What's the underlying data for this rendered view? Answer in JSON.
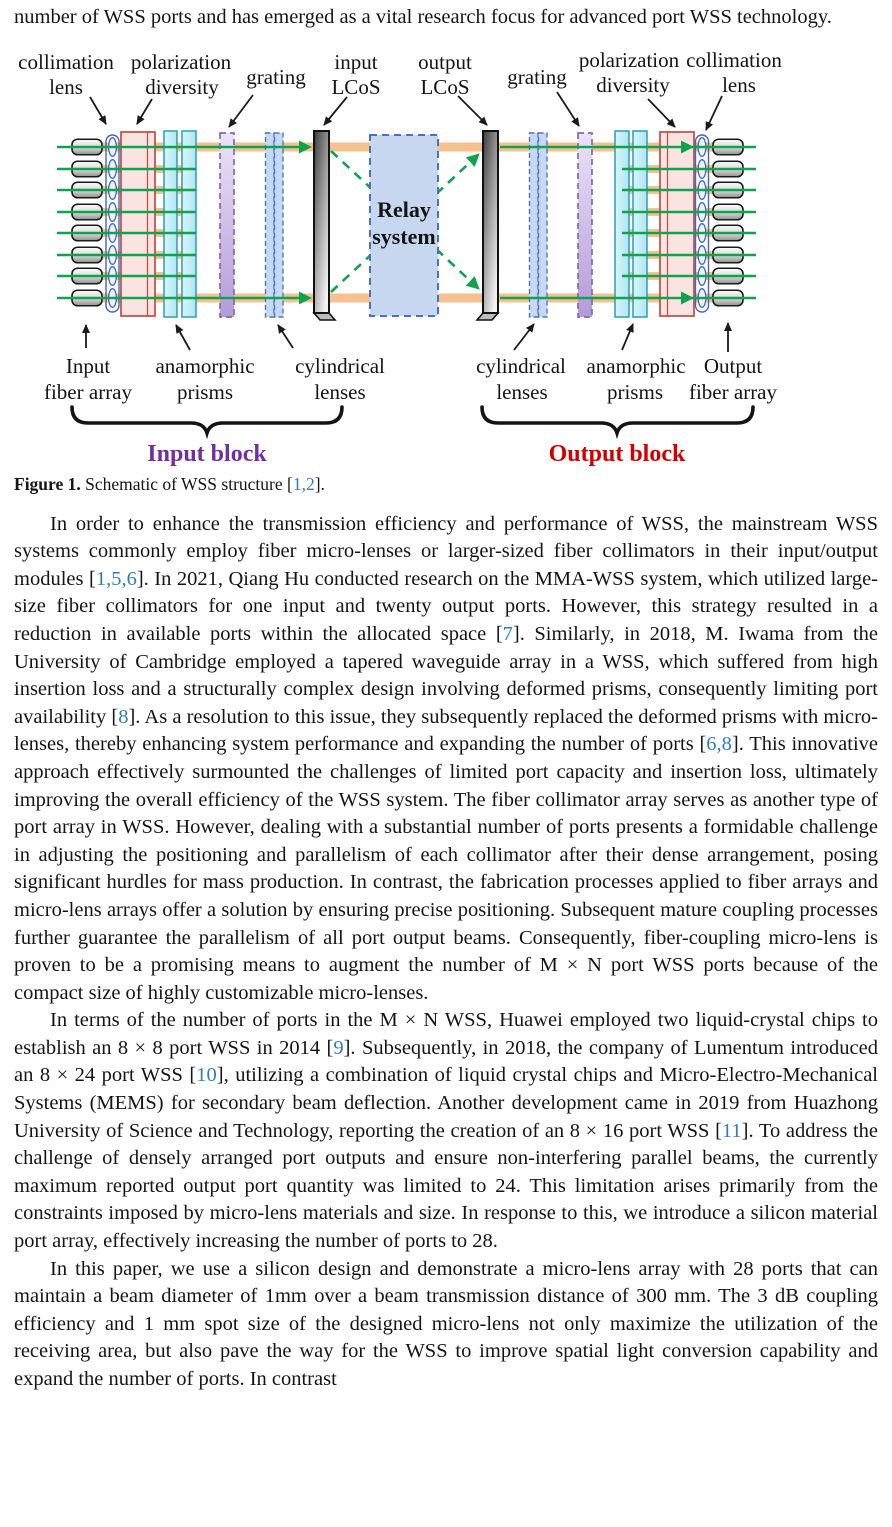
{
  "article": {
    "top_paragraph": {
      "segments": [
        {
          "text": "number of WSS ports and has emerged as a vital research focus for advanced port WSS technology."
        }
      ]
    },
    "paragraphs": [
      {
        "segments": [
          {
            "text": "In order to enhance the transmission efficiency and performance of WSS, the mainstream WSS systems commonly employ fiber micro-lenses or larger-sized fiber collimators in their input/output modules "
          },
          {
            "cite": "1,5,6"
          },
          {
            "text": ". In 2021, Qiang Hu conducted research on the MMA-WSS system, which utilized large-size fiber collimators for one input and twenty output ports. However, this strategy resulted in a reduction in available ports within the allocated space "
          },
          {
            "cite": "7"
          },
          {
            "text": ". Similarly, in 2018, M. Iwama from the University of Cambridge employed a tapered waveguide array in a WSS, which suffered from high insertion loss and a structurally complex design involving deformed prisms, consequently limiting port availability "
          },
          {
            "cite": "8"
          },
          {
            "text": ". As a resolution to this issue, they subsequently replaced the deformed prisms with micro-lenses, thereby enhancing system performance and expanding the number of ports "
          },
          {
            "cite": "6,8"
          },
          {
            "text": ". This innovative approach effectively surmounted the challenges of limited port capacity and insertion loss, ultimately improving the overall efficiency of the WSS system. The fiber collimator array serves as another type of port array in WSS. However, dealing with a substantial number of ports presents a formidable challenge in adjusting the positioning and parallelism of each collimator after their dense arrangement, posing significant hurdles for mass production. In contrast, the fabrication processes applied to fiber arrays and micro-lens arrays offer a solution by ensuring precise positioning. Subsequent mature coupling processes further guarantee the parallelism of all port output beams. Consequently, fiber-coupling micro-lens is proven to be a promising means to augment the number of M × N port WSS ports because of the compact size of highly customizable micro-lenses."
          }
        ]
      },
      {
        "segments": [
          {
            "text": "In terms of the number of ports in the M × N WSS, Huawei employed two liquid-crystal chips to establish an 8 × 8 port WSS in 2014 "
          },
          {
            "cite": "9"
          },
          {
            "text": ". Subsequently, in 2018, the company of Lumentum introduced an 8 × 24 port WSS "
          },
          {
            "cite": "10"
          },
          {
            "text": ", utilizing a combination of liquid crystal chips and Micro-Electro-Mechanical Systems (MEMS) for secondary beam deflection. Another development came in 2019 from Huazhong University of Science and Technology, reporting the creation of an 8 × 16 port WSS "
          },
          {
            "cite": "11"
          },
          {
            "text": ". To address the challenge of densely arranged port outputs and ensure non-interfering parallel beams, the currently maximum reported output port quantity was limited to 24. This limitation arises primarily from the constraints imposed by micro-lens materials and size. In response to this, we introduce a silicon material port array, effectively increasing the number of ports to 28."
          }
        ]
      },
      {
        "segments": [
          {
            "text": "In this paper, we use a silicon design and demonstrate a micro-lens array with 28 ports that can maintain a beam diameter of 1mm over a beam transmission distance of 300 mm. The 3 dB coupling efficiency and 1 mm spot size of the designed micro-lens not only maximize the utilization of the receiving area, but also pave the way for the WSS to improve spatial light conversion capability and expand the number of ports. In contrast"
          }
        ]
      }
    ]
  },
  "figure": {
    "caption": {
      "label": "Figure 1.",
      "text": " Schematic of WSS structure ",
      "citation": "1,2",
      "tail": "."
    },
    "labels": {
      "collimation": "collimation",
      "lens": "lens",
      "polarization": "polarization",
      "diversity": "diversity",
      "grating": "grating",
      "input": "input",
      "output": "output",
      "lcos": "LCoS",
      "relay_line1": "Relay",
      "relay_line2": "system",
      "input_fiber_line1": "Input",
      "output_fiber_line1": "Output",
      "fiber_array": "fiber array",
      "anamorphic": "anamorphic",
      "prisms": "prisms",
      "cylindrical": "cylindrical",
      "lenses": "lenses",
      "input_block": "Input block",
      "output_block": "Output block"
    },
    "colors": {
      "input_block": "#7030A0",
      "output_block": "#D40000",
      "beam_green": "#11A24D",
      "band_orange": "#F5C18F",
      "relay_fill": "#C7D7F0",
      "relay_border": "#4472C4",
      "polarization_fill": "#F9E4E2",
      "polarization_border": "#BF4B44",
      "prism_fill": "#C6EFF9",
      "prism_border": "#2E9BB5",
      "grating_fill": "#CDB7E8",
      "grating_border": "#7E6BB0",
      "cylindrical_fill": "#C6D8F2",
      "cylindrical_border": "#4B77C0",
      "citation": "#2E7DBC"
    }
  }
}
